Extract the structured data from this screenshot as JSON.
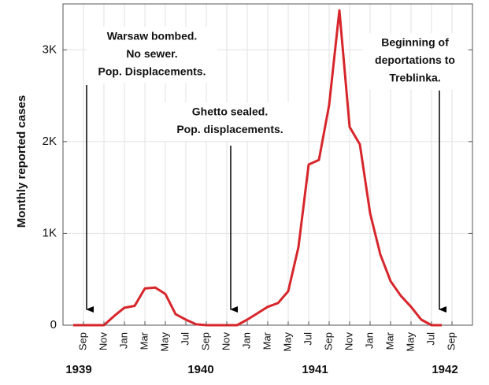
{
  "chart_data": {
    "type": "line",
    "ylabel": "Monthly reported cases",
    "categories": [
      null,
      "Sep",
      null,
      "Nov",
      null,
      "Jan",
      null,
      "Mar",
      null,
      "May",
      null,
      "Jul",
      null,
      "Sep",
      null,
      "Nov",
      null,
      "Jan",
      null,
      "Mar",
      null,
      "May",
      null,
      "Jul",
      null,
      "Sep",
      null,
      "Nov",
      null,
      "Jan",
      null,
      "Mar",
      null,
      "May",
      null,
      "Jul",
      null,
      "Sep"
    ],
    "values": [
      0,
      0,
      0,
      0,
      100,
      190,
      210,
      400,
      410,
      340,
      120,
      60,
      10,
      0,
      0,
      0,
      0,
      60,
      130,
      200,
      240,
      370,
      850,
      1750,
      1800,
      2400,
      3430,
      2160,
      1970,
      1220,
      770,
      480,
      320,
      200,
      60,
      0,
      0,
      null
    ],
    "color": "#d7262b",
    "ylim": [
      0,
      3500
    ],
    "yticks": [
      0,
      {
        "value": 1000,
        "label": "1K"
      },
      {
        "value": 2000,
        "label": "2K"
      },
      {
        "value": 3000,
        "label": "3K"
      }
    ],
    "grid": true,
    "years": [
      "1939",
      "1940",
      "1941",
      "1942"
    ],
    "annotations": [
      {
        "lines": [
          "Warsaw bombed.",
          "No sewer.",
          "Pop. Displacements."
        ]
      },
      {
        "lines": [
          "Ghetto sealed.",
          "Pop. displacements."
        ]
      },
      {
        "lines": [
          "Beginning of",
          "deportations to",
          "Treblinka."
        ]
      }
    ]
  }
}
